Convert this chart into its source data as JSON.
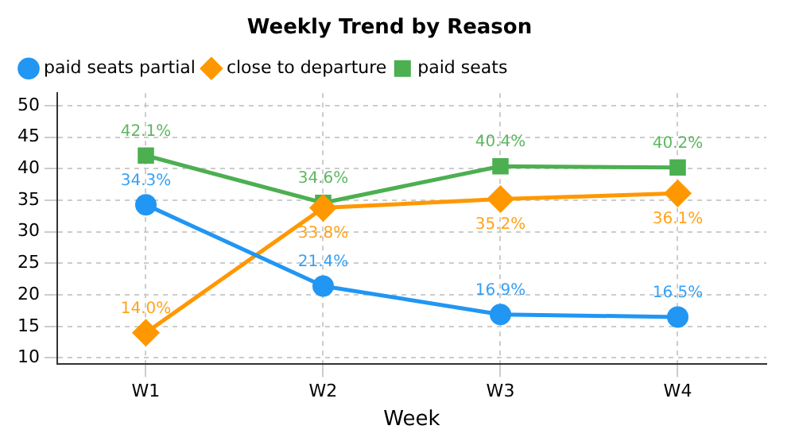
{
  "chart_data": {
    "type": "line",
    "title": "Weekly Trend by Reason",
    "xlabel": "Week",
    "categories": [
      "W1",
      "W2",
      "W3",
      "W4"
    ],
    "series": [
      {
        "name": "paid seats partial",
        "color": "#2196f3",
        "marker": "circle",
        "values": [
          34.3,
          21.4,
          16.9,
          16.5
        ],
        "value_labels": [
          "34.3%",
          "21.4%",
          "16.9%",
          "16.5%"
        ]
      },
      {
        "name": "close to departure",
        "color": "#ff9800",
        "marker": "diamond",
        "values": [
          14.0,
          33.8,
          35.2,
          36.1
        ],
        "value_labels": [
          "14.0%",
          "33.8%",
          "35.2%",
          "36.1%"
        ]
      },
      {
        "name": "paid seats",
        "color": "#4caf50",
        "marker": "square",
        "values": [
          42.1,
          34.6,
          40.4,
          40.2
        ],
        "value_labels": [
          "42.1%",
          "34.6%",
          "40.4%",
          "40.2%"
        ]
      }
    ],
    "ylim": [
      9,
      52
    ],
    "yticks": [
      10,
      15,
      20,
      25,
      30,
      35,
      40,
      45,
      50
    ],
    "grid": true,
    "legend": "top left",
    "line_style": "solid"
  }
}
